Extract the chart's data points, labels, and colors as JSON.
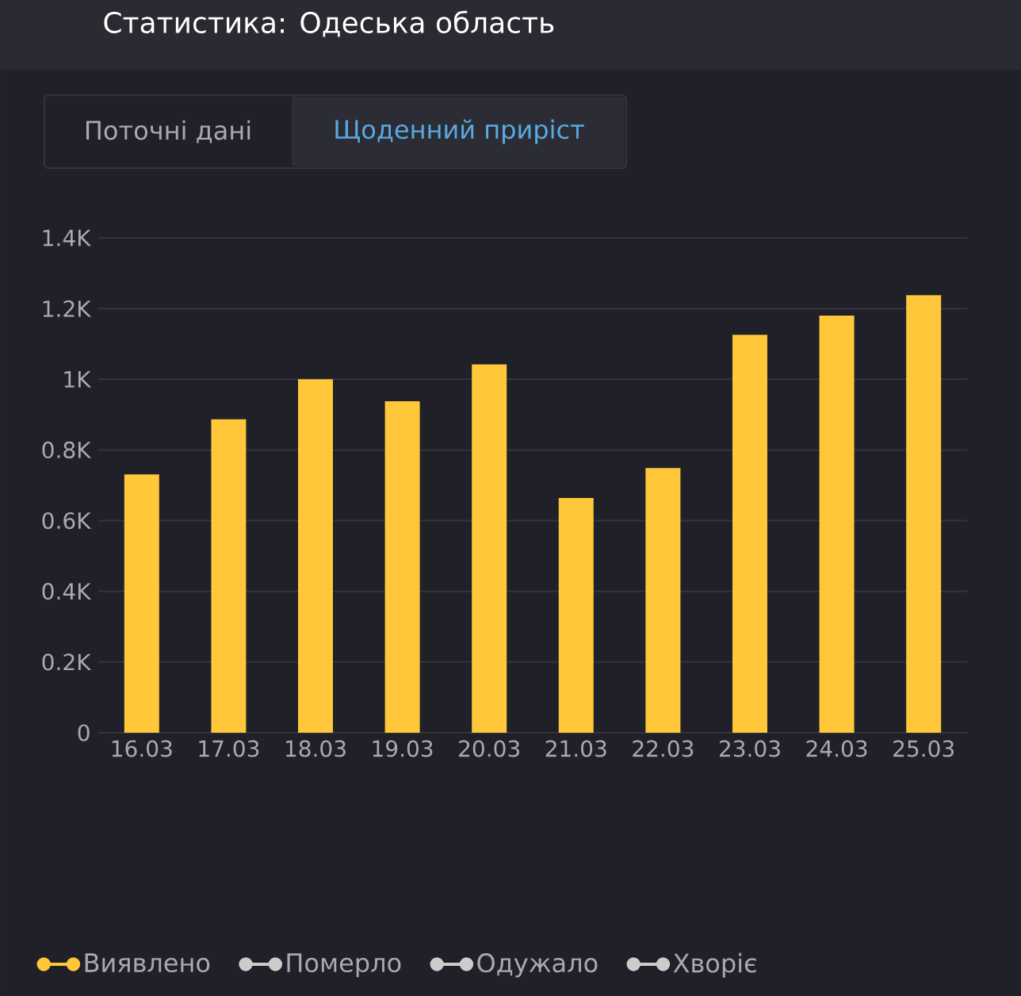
{
  "chart_data": {
    "type": "bar",
    "title": "Статистика: Одеська область",
    "annotations": [
      "Поточні дані",
      "Щоденний приріст"
    ],
    "categories": [
      "16.03",
      "17.03",
      "18.03",
      "19.03",
      "20.03",
      "21.03",
      "22.03",
      "23.03",
      "24.03",
      "25.03"
    ],
    "series": [
      {
        "name": "Виявлено",
        "color": "#ffc739",
        "values": [
          731,
          887,
          1000,
          938,
          1042,
          664,
          749,
          1126,
          1180,
          1238
        ]
      },
      {
        "name": "Померло",
        "color": "#cccccc",
        "values": [
          null,
          null,
          null,
          null,
          null,
          null,
          null,
          null,
          null,
          null
        ]
      },
      {
        "name": "Одужало",
        "color": "#cccccc",
        "values": [
          null,
          null,
          null,
          null,
          null,
          null,
          null,
          null,
          null,
          null
        ]
      },
      {
        "name": "Хворіє",
        "color": "#cccccc",
        "values": [
          null,
          null,
          null,
          null,
          null,
          null,
          null,
          null,
          null,
          null
        ]
      }
    ],
    "ylim": [
      0,
      1400
    ],
    "yticks": [
      0,
      {
        "value": 200,
        "label": "0.2K"
      },
      {
        "value": 400,
        "label": "0.4K"
      },
      {
        "value": 600,
        "label": "0.6K"
      },
      {
        "value": 800,
        "label": "0.8K"
      },
      {
        "value": 1000,
        "label": "1K"
      },
      {
        "value": 1200,
        "label": "1.2K"
      },
      {
        "value": 1400,
        "label": "1.4K"
      }
    ],
    "grid": "y",
    "legend": "bottom",
    "marker": "circle"
  }
}
